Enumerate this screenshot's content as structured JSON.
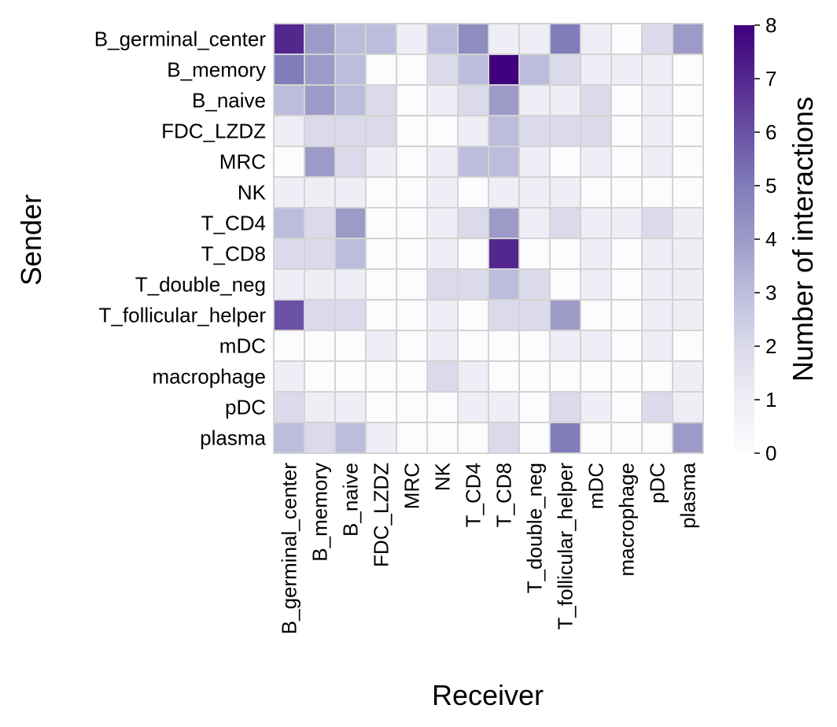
{
  "chart_data": {
    "type": "heatmap",
    "xlabel": "Receiver",
    "ylabel": "Sender",
    "x_categories": [
      "B_germinal_center",
      "B_memory",
      "B_naive",
      "FDC_LZDZ",
      "MRC",
      "NK",
      "T_CD4",
      "T_CD8",
      "T_double_neg",
      "T_follicular_helper",
      "mDC",
      "macrophage",
      "pDC",
      "plasma"
    ],
    "y_categories": [
      "B_germinal_center",
      "B_memory",
      "B_naive",
      "FDC_LZDZ",
      "MRC",
      "NK",
      "T_CD4",
      "T_CD8",
      "T_double_neg",
      "T_follicular_helper",
      "mDC",
      "macrophage",
      "pDC",
      "plasma"
    ],
    "values": [
      [
        7,
        4,
        3,
        3,
        1,
        3,
        4.5,
        1,
        1,
        5,
        1,
        0,
        2,
        4
      ],
      [
        5,
        4,
        3,
        0,
        0,
        2,
        3,
        8,
        3,
        2,
        1,
        1,
        1,
        0
      ],
      [
        3,
        4,
        3,
        2,
        0,
        1,
        2,
        4,
        1,
        1,
        2,
        0,
        1,
        0
      ],
      [
        1,
        2,
        2,
        2,
        0,
        0,
        1,
        3,
        2,
        2,
        2,
        0,
        1,
        0
      ],
      [
        0,
        4,
        2,
        1,
        0,
        1,
        3,
        3,
        1,
        0,
        1,
        0,
        1,
        0
      ],
      [
        1,
        1,
        1,
        0,
        0,
        1,
        0,
        1,
        1,
        1,
        0,
        0,
        0,
        0
      ],
      [
        3,
        2,
        4,
        0,
        0,
        1,
        2,
        4,
        1,
        2,
        1,
        1,
        2,
        1
      ],
      [
        2,
        2,
        3,
        0,
        0,
        1,
        0,
        7,
        0,
        0,
        1,
        0,
        1,
        1
      ],
      [
        1,
        1,
        1,
        0,
        0,
        2,
        2,
        3,
        2,
        0,
        1,
        0,
        1,
        1
      ],
      [
        6,
        2,
        2,
        0,
        0,
        1,
        0,
        2,
        2,
        4,
        0,
        0,
        1,
        1
      ],
      [
        0,
        0,
        0,
        1,
        0,
        1,
        0,
        0,
        0,
        1,
        1,
        0,
        1,
        0
      ],
      [
        1,
        0,
        0,
        0,
        0,
        2,
        1,
        0,
        0,
        0,
        0,
        0,
        0,
        1
      ],
      [
        2,
        1,
        1,
        0,
        0,
        0,
        1,
        1,
        0,
        2,
        1,
        0,
        2,
        1
      ],
      [
        3,
        2,
        3,
        1,
        0,
        0,
        0,
        2,
        0,
        5,
        0,
        0,
        0,
        4
      ]
    ],
    "vmin": 0,
    "vmax": 8,
    "colormap": "Purples",
    "colorbar": {
      "label": "Number of interactions",
      "ticks": [
        0,
        1,
        2,
        3,
        4,
        5,
        6,
        7,
        8
      ]
    }
  }
}
